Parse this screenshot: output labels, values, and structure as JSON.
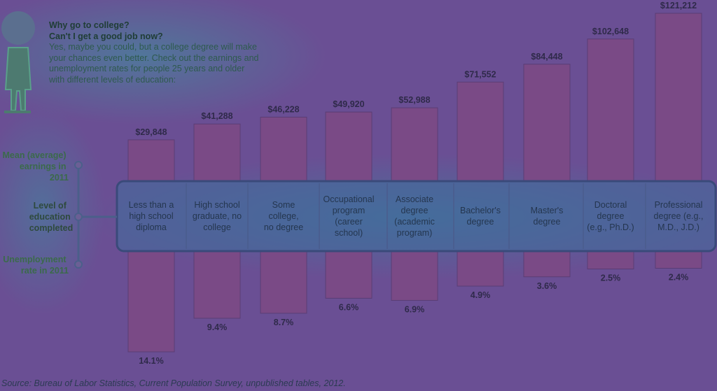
{
  "intro": {
    "heading1": "Why go to college?",
    "heading2": "Can't I get a good job now?",
    "body": "Yes, maybe you could, but a college degree will make your chances even better. Check out the earnings and unemployment rates for people 25 years and older with different levels of education:"
  },
  "side_labels": {
    "earnings": [
      "Mean (average)",
      "earnings in",
      "2011"
    ],
    "level": [
      "Level of",
      "education",
      "completed"
    ],
    "unemployment": [
      "Unemployment",
      "rate in 2011"
    ]
  },
  "source": "Source: Bureau of Labor Statistics, Current Population Survey, unpublished tables, 2012.",
  "chart_data": {
    "type": "bar",
    "categories": [
      [
        "Less than a",
        "high school",
        "diploma"
      ],
      [
        "High school",
        "graduate, no",
        "college"
      ],
      [
        "Some",
        "college,",
        "no degree"
      ],
      [
        "Occupational",
        "program",
        "(career",
        "school)"
      ],
      [
        "Associate",
        "degree",
        "(academic",
        "program)"
      ],
      [
        "Bachelor's",
        "degree"
      ],
      [
        "Master's",
        "degree"
      ],
      [
        "Doctoral",
        "degree",
        "(e.g., Ph.D.)"
      ],
      [
        "Professional",
        "degree (e.g.,",
        "M.D., J.D.)"
      ]
    ],
    "earnings": [
      29848,
      41288,
      46228,
      49920,
      52988,
      71552,
      84448,
      102648,
      121212
    ],
    "earnings_labels": [
      "$29,848",
      "$41,288",
      "$46,228",
      "$49,920",
      "$52,988",
      "$71,552",
      "$84,448",
      "$102,648",
      "$121,212"
    ],
    "unemployment": [
      14.1,
      9.4,
      8.7,
      6.6,
      6.9,
      4.9,
      3.6,
      2.5,
      2.4
    ],
    "unemployment_labels": [
      "14.1%",
      "9.4%",
      "8.7%",
      "6.6%",
      "6.9%",
      "4.9%",
      "3.6%",
      "2.5%",
      "2.4%"
    ],
    "colors": {
      "bar": "#7a4a86",
      "panel": "#3f6d9c",
      "background": "#6a4f94"
    }
  }
}
